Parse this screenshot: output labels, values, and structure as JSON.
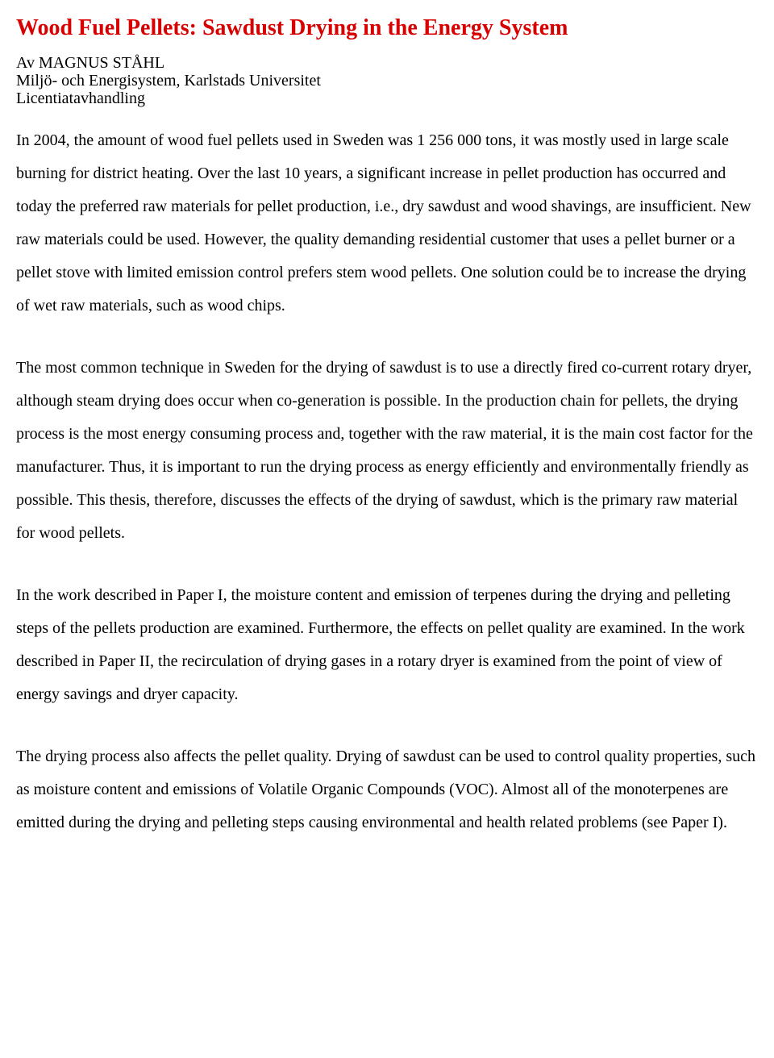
{
  "colors": {
    "title": "#d90000",
    "text": "#000000",
    "background": "#ffffff"
  },
  "typography": {
    "title_fontsize": 28,
    "body_fontsize": 20,
    "font_family": "Times New Roman",
    "body_line_height": 2.05
  },
  "title": "Wood Fuel Pellets: Sawdust Drying in the Energy System",
  "byline": "Av MAGNUS STÅHL",
  "affiliation": "Miljö- och Energisystem, Karlstads Universitet",
  "doctype": "Licentiatavhandling",
  "paragraphs": [
    {
      "lead": "In 2004, the amount of wood fuel pellets used in Sweden was 1 256 000 tons, it was mostly",
      "body": "used in large scale burning for district heating. Over the last 10 years, a significant increase in pellet production has occurred and today the preferred raw materials for pellet production, i.e., dry sawdust and wood shavings, are insufficient. New raw materials could be used. However, the quality demanding residential customer that uses a pellet burner or a pellet stove with limited emission control prefers stem wood pellets. One solution could be to increase the drying of wet raw materials, such as wood chips."
    },
    "The most common technique in Sweden for the drying of sawdust is to use a directly fired co-current rotary dryer, although steam drying does occur when co-generation is possible. In the production chain for pellets, the drying process is the most energy consuming process and, together with the raw material, it is the main cost factor for the manufacturer. Thus, it is important to run the drying process as energy efficiently and environmentally friendly as possible. This thesis, therefore, discusses the effects of the drying of sawdust, which is the primary raw material for wood pellets.",
    "In the work described in Paper I, the moisture content and emission of terpenes during the drying and pelleting steps of the pellets production are examined. Furthermore, the effects on pellet quality are examined. In the work described in Paper II, the recirculation of drying gases in a rotary dryer is examined from the point of view of energy savings and dryer capacity.",
    "The drying process also affects the pellet quality. Drying of sawdust can be used to control quality properties, such as moisture content and emissions of Volatile Organic Compounds (VOC). Almost all of the monoterpenes are emitted during the drying and pelleting steps causing environmental and health related problems (see Paper I)."
  ]
}
